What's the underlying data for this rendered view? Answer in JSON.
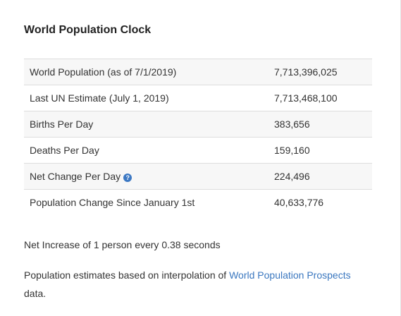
{
  "widget": {
    "title": "World Population Clock",
    "rows": [
      {
        "label": "World Population (as of 7/1/2019)",
        "value": "7,713,396,025"
      },
      {
        "label": "Last UN Estimate (July 1, 2019)",
        "value": "7,713,468,100"
      },
      {
        "label": "Births Per Day",
        "value": "383,656"
      },
      {
        "label": "Deaths Per Day",
        "value": "159,160"
      },
      {
        "label": "Net Change Per Day",
        "value": "224,496",
        "help_icon": "question-circle-icon"
      },
      {
        "label": "Population Change Since January 1st",
        "value": "40,633,776"
      }
    ],
    "net_increase": "Net Increase of 1 person every 0.38 seconds",
    "estimates": {
      "prefix": "Population estimates based on interpolation of ",
      "link_text": "World Population Prospects",
      "suffix": " data."
    },
    "colors": {
      "link": "#3a77bf",
      "help_icon": "#3c78c3",
      "stripe": "#f7f7f7",
      "border": "#dddddd"
    }
  }
}
